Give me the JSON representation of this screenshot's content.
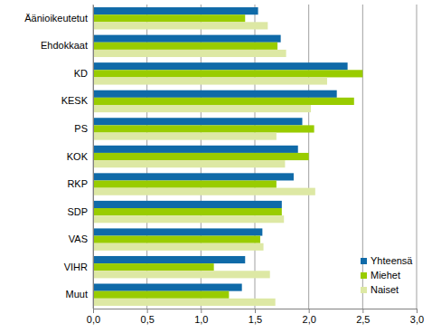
{
  "chart_data": {
    "type": "bar",
    "orientation": "horizontal",
    "categories": [
      "Äänioikeutetut",
      "Ehdokkaat",
      "KD",
      "KESK",
      "PS",
      "KOK",
      "RKP",
      "SDP",
      "VAS",
      "VIHR",
      "Muut"
    ],
    "series": [
      {
        "name": "Yhteensä",
        "color": "#0f6aa8",
        "values": [
          1.53,
          1.74,
          2.36,
          2.26,
          1.94,
          1.9,
          1.86,
          1.75,
          1.57,
          1.41,
          1.38
        ]
      },
      {
        "name": "Miehet",
        "color": "#99cc00",
        "values": [
          1.41,
          1.71,
          2.5,
          2.42,
          2.05,
          2.0,
          1.7,
          1.75,
          1.55,
          1.12,
          1.26
        ]
      },
      {
        "name": "Naiset",
        "color": "#dde8a4",
        "values": [
          1.62,
          1.79,
          2.17,
          2.02,
          1.7,
          1.78,
          2.06,
          1.77,
          1.58,
          1.64,
          1.69
        ]
      }
    ],
    "xlim": [
      0,
      3
    ],
    "xticks": [
      {
        "value": 0,
        "label": "0,0"
      },
      {
        "value": 0.5,
        "label": "0,5"
      },
      {
        "value": 1,
        "label": "1,0"
      },
      {
        "value": 1.5,
        "label": "1,5"
      },
      {
        "value": 2,
        "label": "2,0"
      },
      {
        "value": 2.5,
        "label": "2,5"
      },
      {
        "value": 3,
        "label": "3,0"
      }
    ],
    "grid": true,
    "legend": "lower right"
  }
}
